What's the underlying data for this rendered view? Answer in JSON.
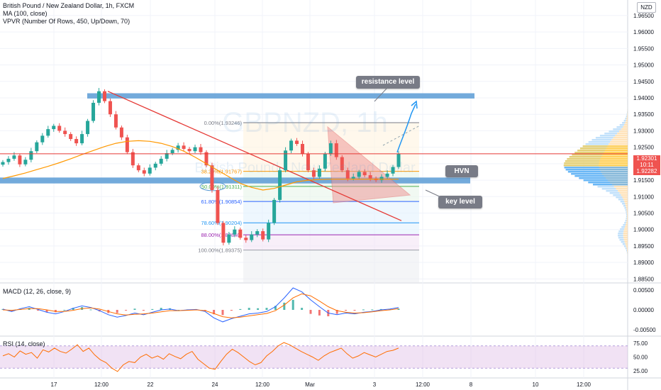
{
  "header": {
    "title": "British Pound / New Zealand Dollar, 1h, FXCM",
    "indicator_ma": "MA (100, close)",
    "indicator_vpvr": "VPVR (Number Of Rows, 450, Up/Down, 70)",
    "currency_button": "NZD"
  },
  "watermark": {
    "symbol": "GBPNZD, 1h",
    "name": "British Pound / New Zealand Dollar"
  },
  "callouts": {
    "resistance": "resistance level",
    "hvn": "HVN",
    "key": "key level"
  },
  "price_tags": {
    "last": "1.92301",
    "countdown": "10:11",
    "ma": "1.92282"
  },
  "panes": {
    "macd_title": "MACD (12, 26, close, 9)",
    "rsi_title": "RSI (14, close)"
  },
  "colors": {
    "up": "#26a69a",
    "down": "#ef5350",
    "ma": "#ff9800",
    "zone": "#5b9bd5",
    "trend": "#e53935",
    "macd": "#2962ff",
    "signal": "#ff6d00",
    "rsi": "#ff6d00",
    "rsi_band": "#e1bee7"
  },
  "chart_data": [
    {
      "type": "candlestick",
      "y_axis": {
        "ticks": [
          "1.96500",
          "1.96000",
          "1.95500",
          "1.95000",
          "1.94500",
          "1.94000",
          "1.93500",
          "1.93000",
          "1.92500",
          "1.92000",
          "1.91500",
          "1.91000",
          "1.90500",
          "1.90000",
          "1.89500",
          "1.89000",
          "1.88500"
        ],
        "ylim": [
          1.884,
          1.968
        ]
      },
      "x_axis": {
        "ticks": [
          "17",
          "12:00",
          "22",
          "24",
          "12:00",
          "Mar",
          "3",
          "12:00",
          "8",
          "10",
          "12:00"
        ]
      },
      "close_approx": [
        1.9205,
        1.9215,
        1.9225,
        1.9198,
        1.9212,
        1.9238,
        1.9265,
        1.9285,
        1.9305,
        1.9315,
        1.93,
        1.929,
        1.9275,
        1.9262,
        1.929,
        1.933,
        1.9385,
        1.942,
        1.939,
        1.935,
        1.931,
        1.928,
        1.9235,
        1.9195,
        1.918,
        1.917,
        1.9188,
        1.92,
        1.9215,
        1.9232,
        1.9242,
        1.9255,
        1.9245,
        1.9238,
        1.925,
        1.9235,
        1.9195,
        1.912,
        1.902,
        1.896,
        1.8985,
        1.9,
        1.8975,
        1.8968,
        1.8985,
        1.8995,
        1.897,
        1.902,
        1.909,
        1.918,
        1.924,
        1.927,
        1.926,
        1.923,
        1.918,
        1.916,
        1.9185,
        1.923,
        1.9262,
        1.922,
        1.918,
        1.9155,
        1.916,
        1.9175,
        1.9165,
        1.9155,
        1.915,
        1.916,
        1.917,
        1.919,
        1.923
      ],
      "ma100_approx": [
        1.9155,
        1.9163,
        1.9172,
        1.9182,
        1.9192,
        1.9203,
        1.9215,
        1.9228,
        1.924,
        1.9252,
        1.9262,
        1.9268,
        1.927,
        1.9268,
        1.9262,
        1.9252,
        1.9238,
        1.922,
        1.92,
        1.918,
        1.916,
        1.914,
        1.9128,
        1.912,
        1.9125,
        1.9135,
        1.9145,
        1.915,
        1.9152,
        1.9153,
        1.9153,
        1.9153,
        1.9153,
        1.9153,
        1.9153,
        1.9153
      ],
      "fibonacci": [
        {
          "label": "0.00%(1.93246)",
          "value": 1.93246
        },
        {
          "label": "38.20%(1.91767)",
          "value": 1.91767
        },
        {
          "label": "50.00%(1.91311)",
          "value": 1.91311
        },
        {
          "label": "61.80%(1.90854)",
          "value": 1.90854
        },
        {
          "label": "78.60%(1.90204)",
          "value": 1.90204
        },
        {
          "label": "88.00%(1.89840)",
          "value": 1.8984
        },
        {
          "label": "100.00%(1.89375)",
          "value": 1.89375
        }
      ],
      "zones": [
        {
          "name": "resistance level",
          "from": 1.9398,
          "to": 1.9414
        },
        {
          "name": "key level",
          "from": 1.914,
          "to": 1.9158
        }
      ],
      "hlines": [
        {
          "value": 1.923
        }
      ],
      "last_price": 1.92301,
      "ma_price": 1.92282
    },
    {
      "type": "line",
      "title": "MACD (12, 26, close, 9)",
      "y_axis": {
        "ticks": [
          "0.00500",
          "0.00000",
          "-0.00500"
        ],
        "ylim": [
          -0.0062,
          0.0062
        ]
      },
      "macd_approx": [
        0.0002,
        -0.0004,
        0.0003,
        0.0008,
        0.0001,
        -0.0006,
        -0.001,
        -0.0004,
        0.0004,
        0.001,
        0.0006,
        -0.0002,
        -0.0012,
        -0.0018,
        -0.0014,
        -0.0008,
        -0.0012,
        -0.0006,
        0.0,
        0.0002,
        -0.0002,
        0.0,
        0.0001,
        -0.0004,
        -0.002,
        -0.003,
        -0.0022,
        -0.0016,
        -0.001,
        -0.0008,
        -0.0004,
        0.0008,
        0.003,
        0.0055,
        0.0045,
        0.0025,
        0.0008,
        -0.0008,
        -0.0012,
        -0.0008,
        -0.001,
        -0.0006,
        -0.0004,
        0.0,
        0.0002,
        0.0006
      ],
      "signal_approx": [
        0.0,
        -0.0001,
        0.0001,
        0.0003,
        0.0003,
        0.0,
        -0.0004,
        -0.0004,
        -0.0001,
        0.0003,
        0.0005,
        0.0002,
        -0.0004,
        -0.001,
        -0.0013,
        -0.0011,
        -0.001,
        -0.0008,
        -0.0005,
        -0.0002,
        -0.0002,
        -0.0001,
        0.0,
        -0.0002,
        -0.0009,
        -0.0017,
        -0.002,
        -0.0018,
        -0.0015,
        -0.0012,
        -0.0009,
        -0.0002,
        0.0012,
        0.003,
        0.004,
        0.0035,
        0.0022,
        0.0008,
        -0.0002,
        -0.0006,
        -0.0008,
        -0.0007,
        -0.0005,
        -0.0002,
        0.0,
        0.0003
      ]
    },
    {
      "type": "line",
      "title": "RSI (14, close)",
      "y_axis": {
        "ticks": [
          "75.00",
          "50.00",
          "25.00"
        ],
        "ylim": [
          15,
          85
        ]
      },
      "bands": [
        70,
        30
      ],
      "rsi_approx": [
        52,
        56,
        50,
        61,
        55,
        58,
        48,
        63,
        59,
        66,
        60,
        57,
        64,
        72,
        60,
        66,
        54,
        45,
        40,
        30,
        24,
        36,
        42,
        40,
        50,
        55,
        48,
        52,
        46,
        56,
        51,
        47,
        55,
        60,
        46,
        38,
        30,
        28,
        42,
        55,
        64,
        58,
        50,
        42,
        36,
        40,
        52,
        60,
        70,
        76,
        72,
        66,
        60,
        55,
        50,
        44,
        52,
        58,
        62,
        66,
        56,
        48,
        52,
        58,
        54,
        50,
        55,
        60,
        62,
        66
      ]
    }
  ]
}
